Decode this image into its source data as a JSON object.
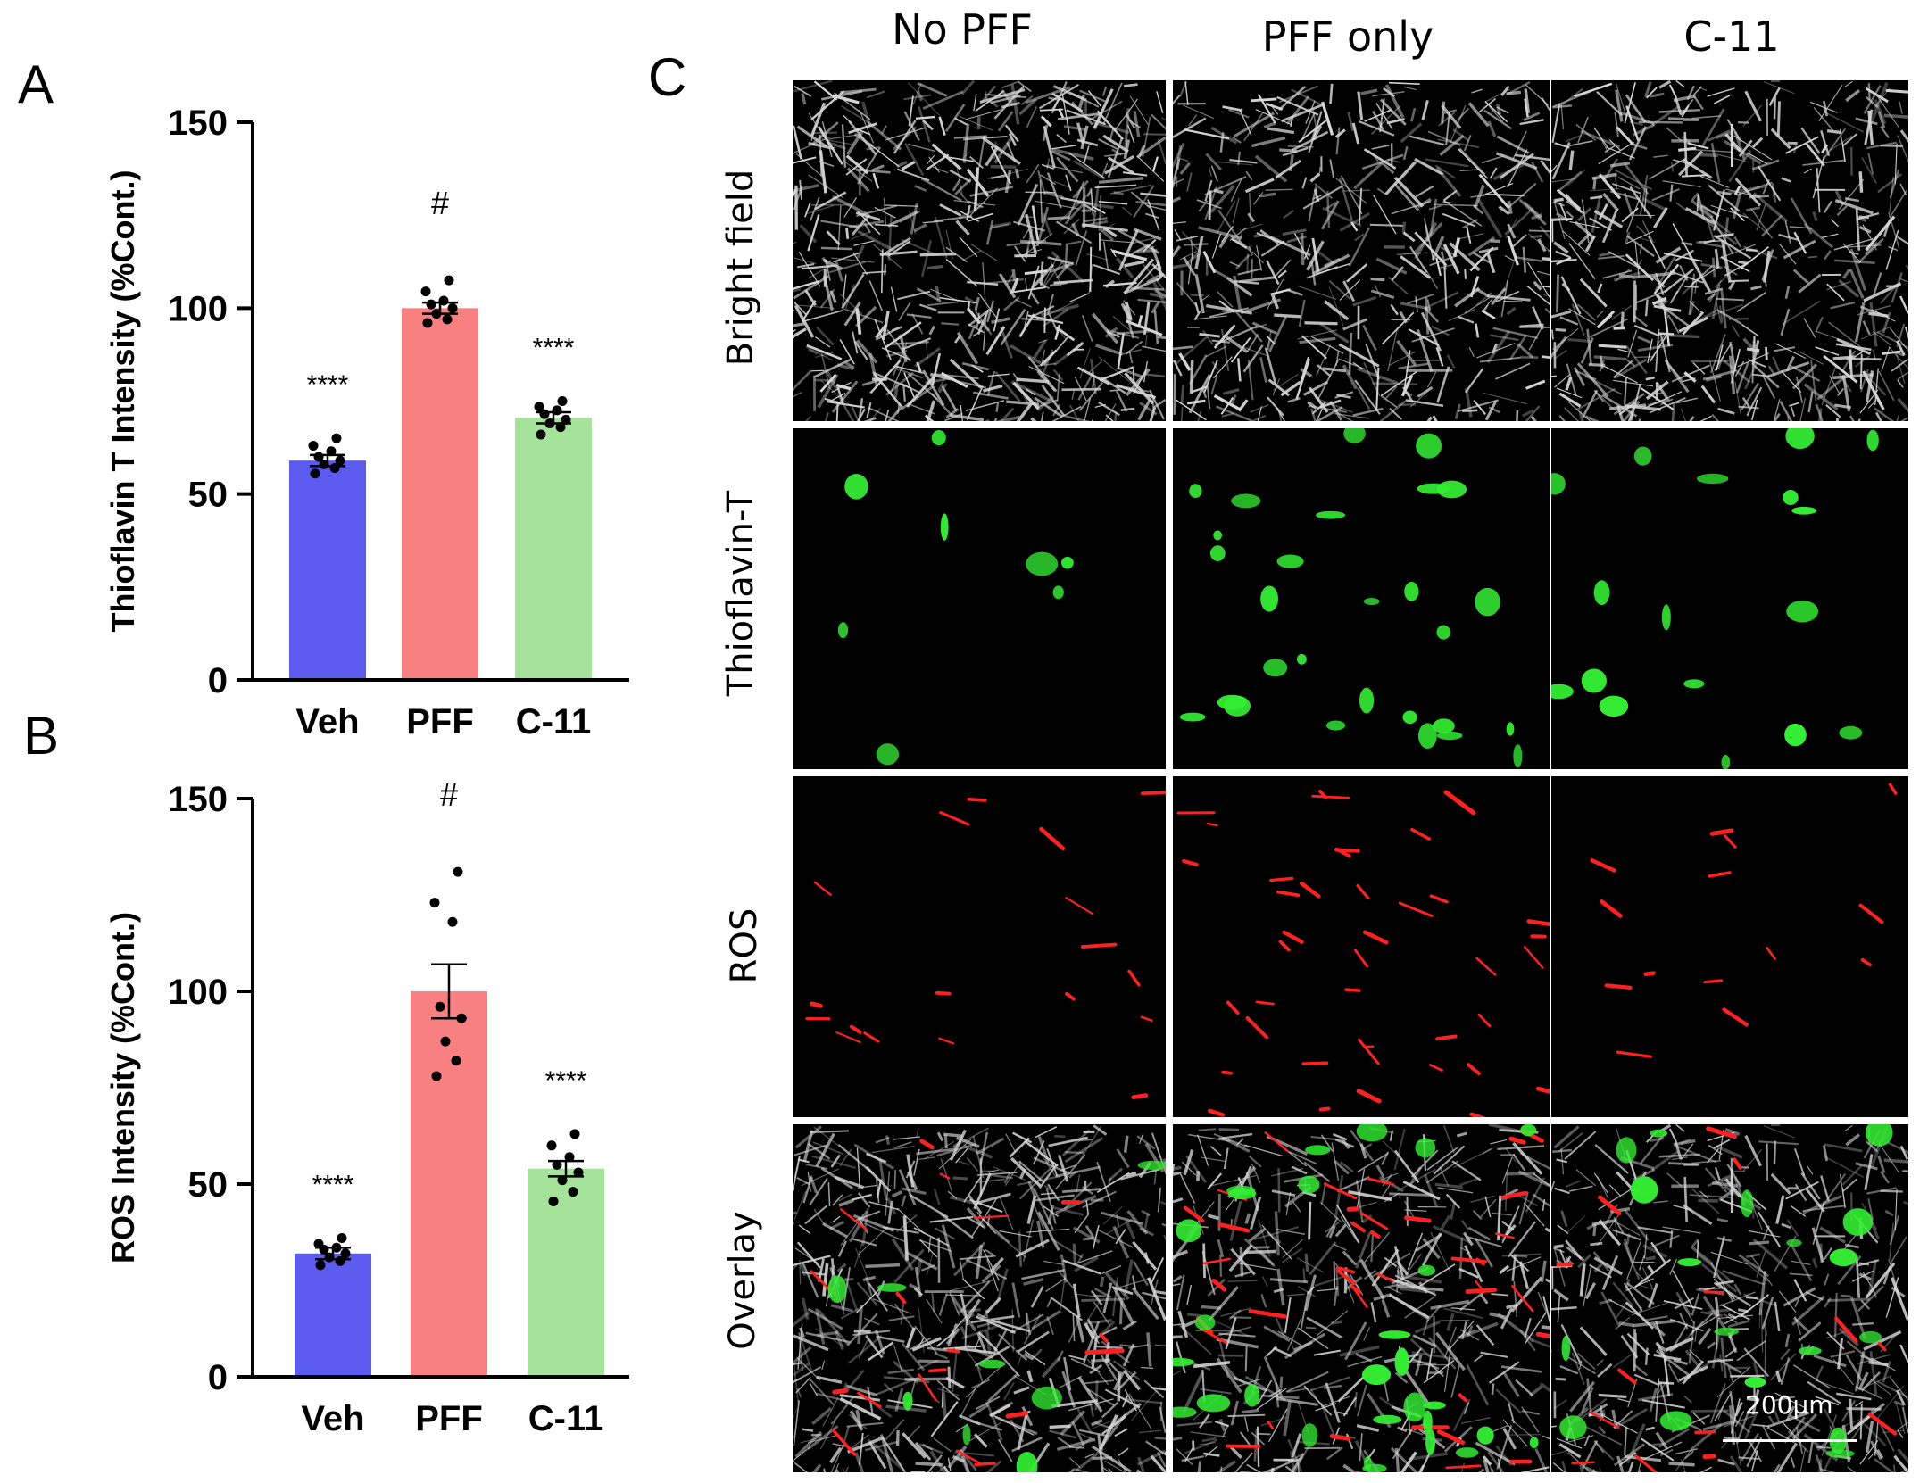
{
  "panels": {
    "a_letter": "A",
    "b_letter": "B",
    "c_letter": "C"
  },
  "chart_data": [
    {
      "type": "bar",
      "panel": "A",
      "ylabel": "Thioflavin T Intensity (%Cont.)",
      "xlabel": "",
      "categories": [
        "Veh",
        "PFF",
        "C-11"
      ],
      "values": [
        59,
        100,
        70.5
      ],
      "errors": [
        1.5,
        1.5,
        1.5
      ],
      "annotations": [
        "****",
        "#",
        "****"
      ],
      "colors": [
        "#5b5bef",
        "#f88080",
        "#a6e39a"
      ],
      "ylim": [
        0,
        150
      ],
      "yticks": [
        "0",
        "50",
        "100",
        "150"
      ],
      "points": [
        [
          55.5,
          57,
          58,
          59,
          60,
          61.5,
          63,
          65
        ],
        [
          96,
          97,
          98.5,
          100,
          101,
          102,
          104.5,
          107.5
        ],
        [
          66,
          68,
          69,
          70,
          71.5,
          72.5,
          73.5,
          75
        ]
      ]
    },
    {
      "type": "bar",
      "panel": "B",
      "ylabel": "ROS Intensity (%Cont.)",
      "xlabel": "",
      "categories": [
        "Veh",
        "PFF",
        "C-11"
      ],
      "values": [
        32,
        100,
        54
      ],
      "errors": [
        1.5,
        7,
        2
      ],
      "annotations": [
        "****",
        "#",
        "****"
      ],
      "colors": [
        "#5b5bef",
        "#f88080",
        "#a6e39a"
      ],
      "ylim": [
        0,
        150
      ],
      "yticks": [
        "0",
        "50",
        "100",
        "150"
      ],
      "points": [
        [
          29,
          30,
          31,
          32,
          33,
          33.5,
          34.5,
          36
        ],
        [
          78,
          82,
          87,
          93,
          96,
          118,
          123,
          131
        ],
        [
          45.5,
          48,
          51,
          53,
          55,
          57,
          60,
          63
        ]
      ]
    }
  ],
  "micrograph_grid": {
    "columns": [
      "No PFF",
      "PFF only",
      "C-11"
    ],
    "rows": [
      "Bright field",
      "Thioflavin-T",
      "ROS",
      "Overlay"
    ],
    "scalebar_label": "200µm",
    "colors": {
      "bright": "#d8d8d8",
      "thioflavin": "#33ee33",
      "ros": "#ff2020",
      "background": "#000000"
    }
  }
}
